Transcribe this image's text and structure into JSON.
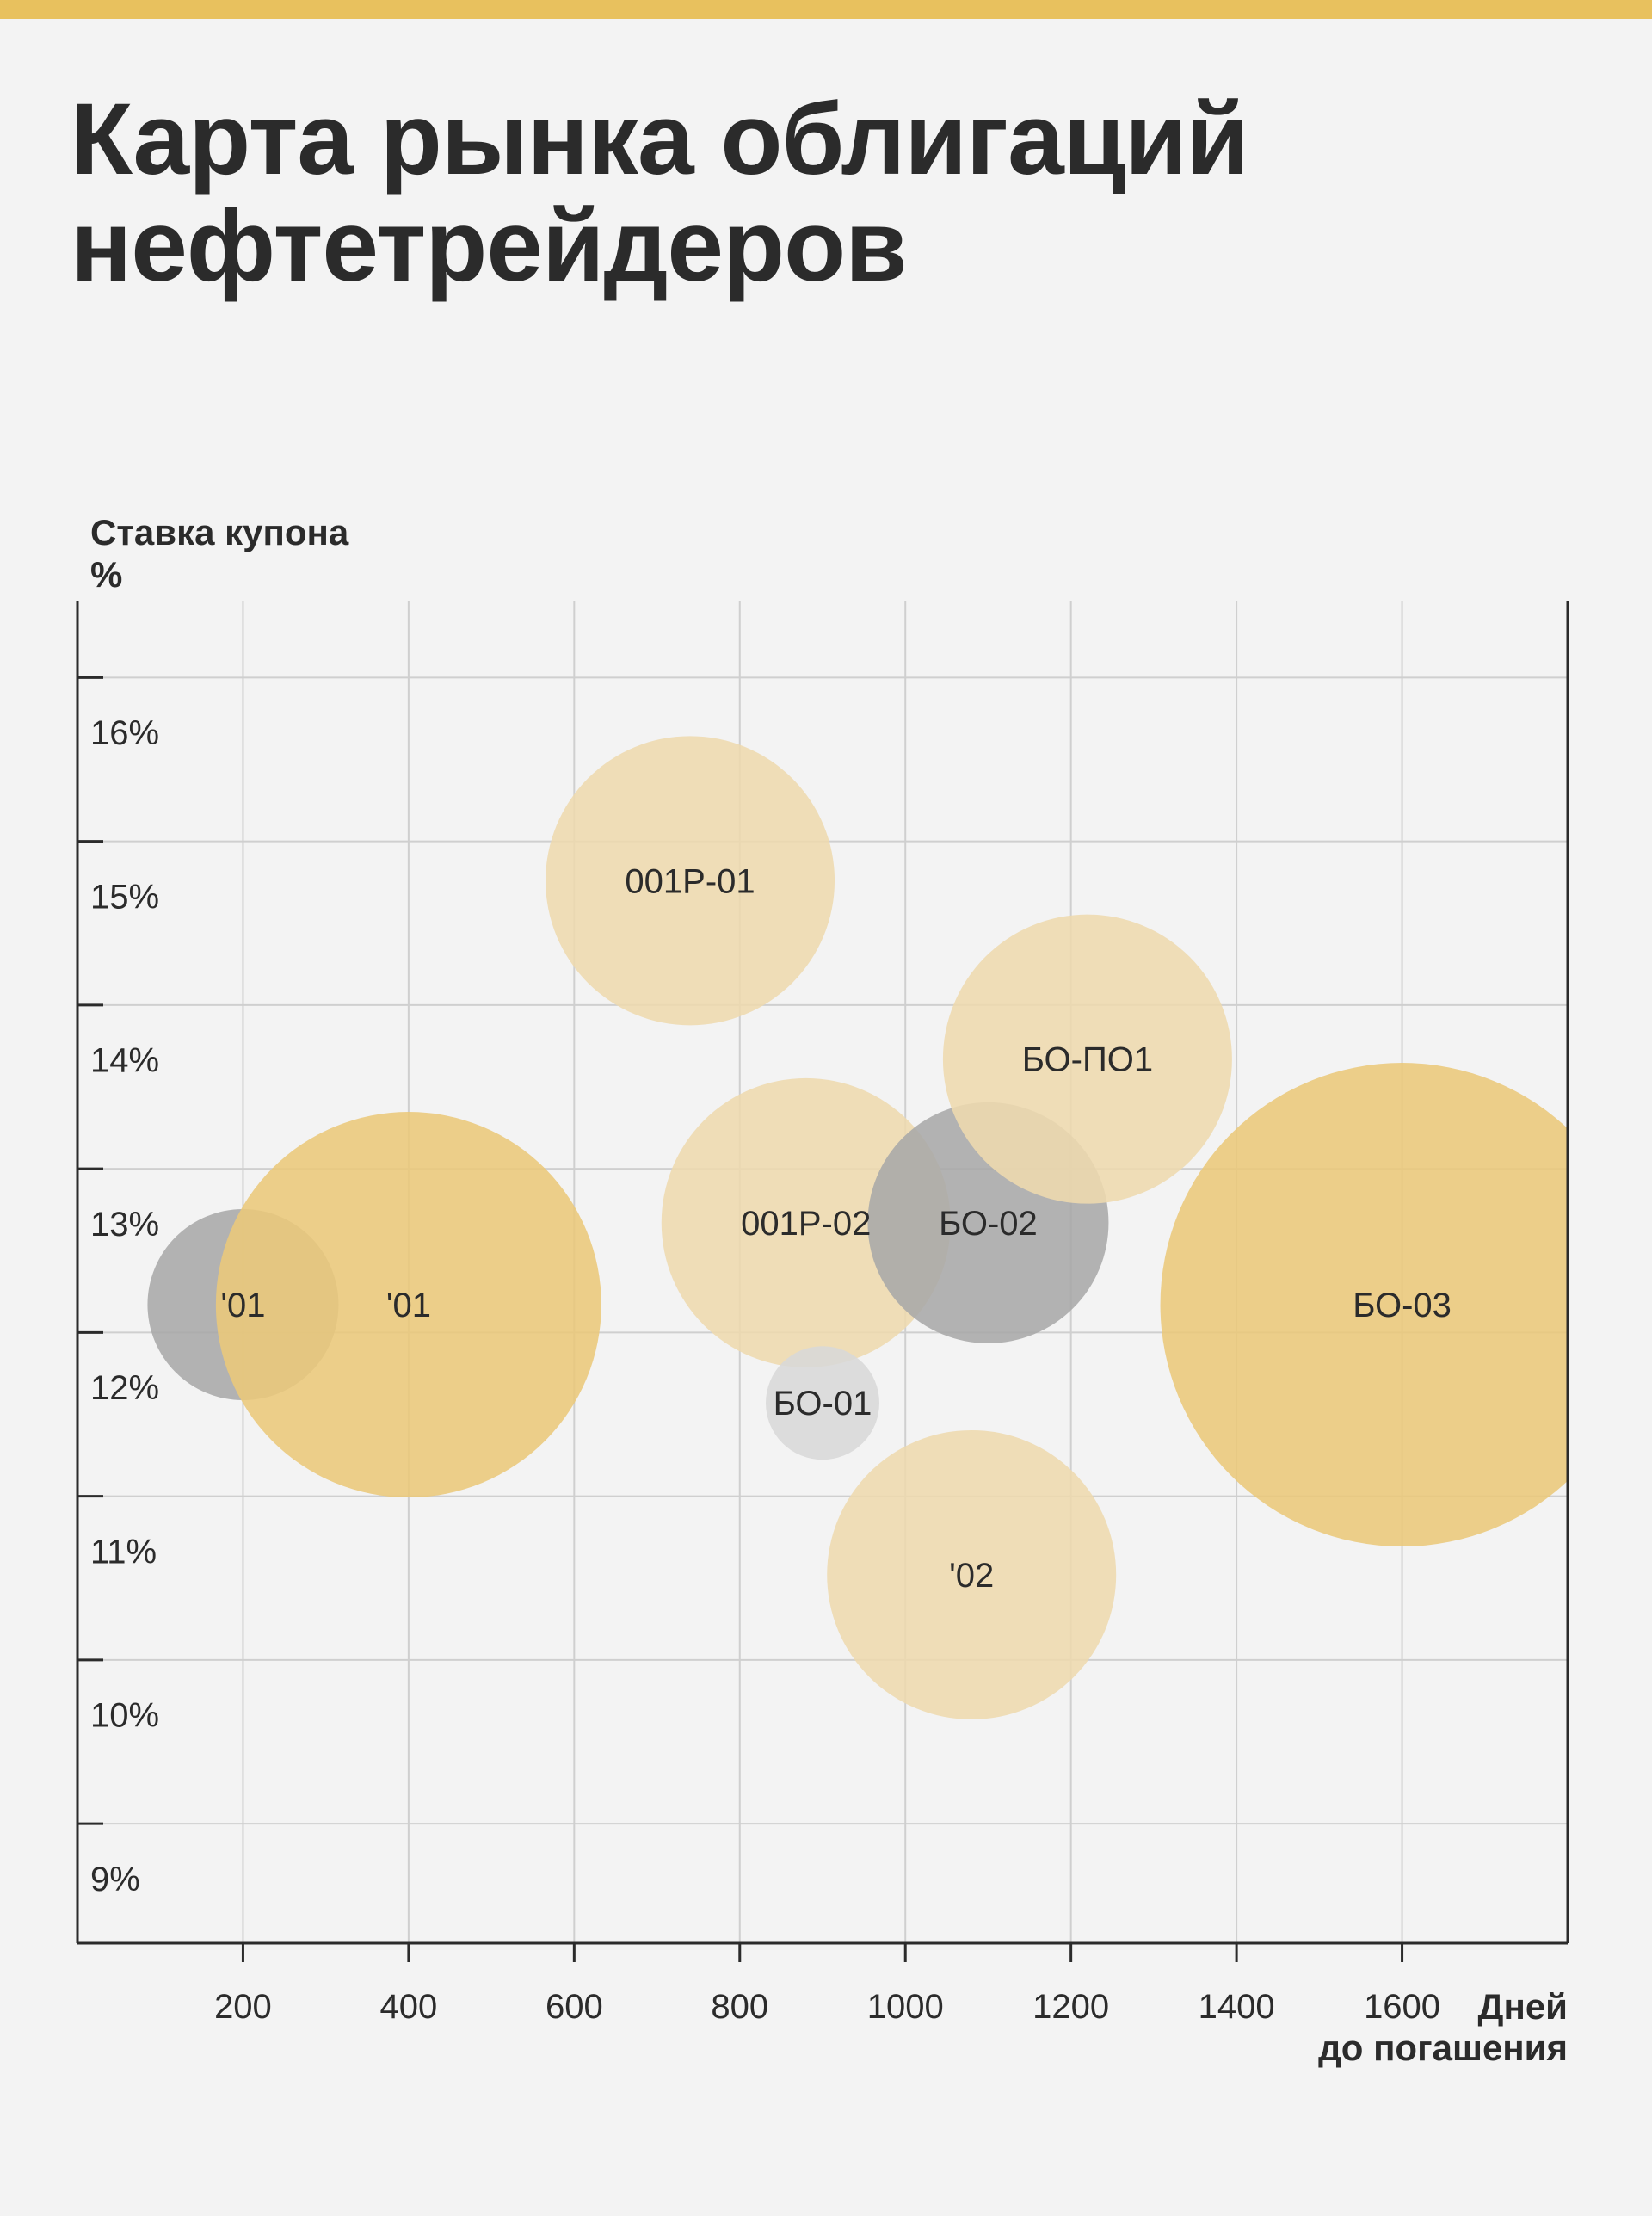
{
  "header": {
    "title_line1": "Карта рынка облигаций",
    "title_line2": "нефтетрейдеров"
  },
  "colors": {
    "accent_bar": "#e8c15e",
    "bubble_gold_strong": "#ebc87a",
    "bubble_gold_light": "#eed9ae",
    "bubble_gray_dark": "#a8a8a8",
    "bubble_gray_light": "#d8d8d8",
    "grid": "#cfcfcf",
    "axis": "#2b2b2b"
  },
  "chart_data": {
    "type": "scatter",
    "title": "Карта рынка облигаций нефтетрейдеров",
    "ylabel_line1": "Ставка купона",
    "ylabel_line2": "%",
    "xlabel_line1": "Дней",
    "xlabel_line2": "до погашения",
    "xlim": [
      0,
      1800
    ],
    "ylim": [
      8.6,
      16.8
    ],
    "x_ticks": [
      200,
      400,
      600,
      800,
      1000,
      1200,
      1400,
      1600
    ],
    "x_tick_labels": [
      "200",
      "400",
      "600",
      "800",
      "1000",
      "1200",
      "1400",
      "1600"
    ],
    "y_ticks": [
      9,
      10,
      11,
      12,
      13,
      14,
      15,
      16
    ],
    "y_tick_labels": [
      "9%",
      "10%",
      "11%",
      "12%",
      "13%",
      "14%",
      "15%",
      "16%"
    ],
    "grid": true,
    "bubbles": [
      {
        "label": "'01",
        "x": 200,
        "y": 12.5,
        "r": 111,
        "color": "bubble_gray_dark"
      },
      {
        "label": "'01",
        "x": 400,
        "y": 12.5,
        "r": 224,
        "color": "bubble_gold_strong"
      },
      {
        "label": "001P-01",
        "x": 740,
        "y": 15.09,
        "r": 168,
        "color": "bubble_gold_light"
      },
      {
        "label": "001P-02",
        "x": 880,
        "y": 13.0,
        "r": 168,
        "color": "bubble_gold_light"
      },
      {
        "label": "БО-01",
        "x": 900,
        "y": 11.9,
        "r": 66,
        "color": "bubble_gray_light"
      },
      {
        "label": "БО-02",
        "x": 1100,
        "y": 13.0,
        "r": 140,
        "color": "bubble_gray_dark"
      },
      {
        "label": "БО-ПО1",
        "x": 1220,
        "y": 14.0,
        "r": 168,
        "color": "bubble_gold_light"
      },
      {
        "label": "'02",
        "x": 1080,
        "y": 10.85,
        "r": 168,
        "color": "bubble_gold_light"
      },
      {
        "label": "БО-03",
        "x": 1600,
        "y": 12.5,
        "r": 281,
        "color": "bubble_gold_strong"
      }
    ]
  }
}
